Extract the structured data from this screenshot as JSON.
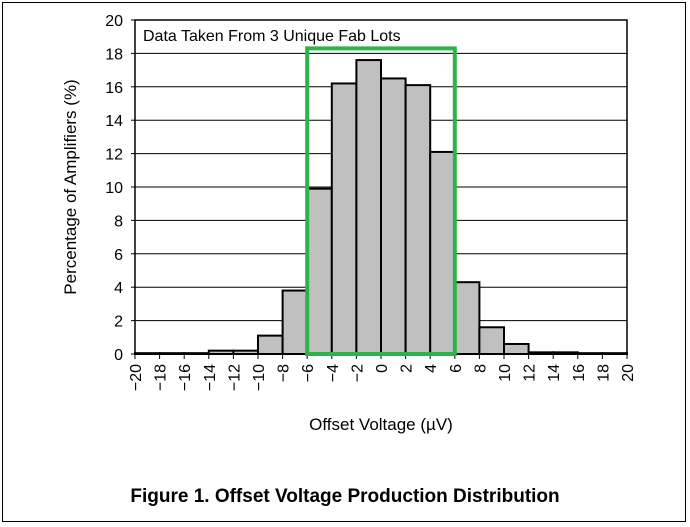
{
  "chart_data": {
    "type": "bar",
    "annotation": "Data Taken From 3 Unique Fab Lots",
    "xlabel": "Offset Voltage (µV)",
    "ylabel": "Percentage of Amplifiers (%)",
    "xlim": [
      -20,
      20
    ],
    "ylim": [
      0,
      20
    ],
    "x_ticks": [
      -20,
      -18,
      -16,
      -14,
      -12,
      -10,
      -8,
      -6,
      -4,
      -2,
      0,
      2,
      4,
      6,
      8,
      10,
      12,
      14,
      16,
      18,
      20
    ],
    "y_ticks": [
      0,
      2,
      4,
      6,
      8,
      10,
      12,
      14,
      16,
      18,
      20
    ],
    "grid": "horizontal",
    "bin_width": 2,
    "bins": [
      {
        "x0": -20,
        "x1": -18,
        "value": 0.05
      },
      {
        "x0": -18,
        "x1": -16,
        "value": 0.05
      },
      {
        "x0": -16,
        "x1": -14,
        "value": 0.05
      },
      {
        "x0": -14,
        "x1": -12,
        "value": 0.2
      },
      {
        "x0": -12,
        "x1": -10,
        "value": 0.2
      },
      {
        "x0": -10,
        "x1": -8,
        "value": 1.1
      },
      {
        "x0": -8,
        "x1": -6,
        "value": 3.8
      },
      {
        "x0": -6,
        "x1": -4,
        "value": 9.9
      },
      {
        "x0": -4,
        "x1": -2,
        "value": 16.2
      },
      {
        "x0": -2,
        "x1": 0,
        "value": 17.6
      },
      {
        "x0": 0,
        "x1": 2,
        "value": 16.5
      },
      {
        "x0": 2,
        "x1": 4,
        "value": 16.1
      },
      {
        "x0": 4,
        "x1": 6,
        "value": 12.1
      },
      {
        "x0": 6,
        "x1": 8,
        "value": 4.3
      },
      {
        "x0": 8,
        "x1": 10,
        "value": 1.6
      },
      {
        "x0": 10,
        "x1": 12,
        "value": 0.6
      },
      {
        "x0": 12,
        "x1": 14,
        "value": 0.1
      },
      {
        "x0": 14,
        "x1": 16,
        "value": 0.1
      },
      {
        "x0": 16,
        "x1": 18,
        "value": 0.05
      },
      {
        "x0": 18,
        "x1": 20,
        "value": 0.05
      }
    ],
    "highlight": {
      "x0": -6,
      "x1": 6,
      "y_top": 18.3,
      "color": "#2db34a"
    },
    "bar_color": "#c0c0c0",
    "caption": "Figure 1. Offset Voltage Production Distribution"
  }
}
